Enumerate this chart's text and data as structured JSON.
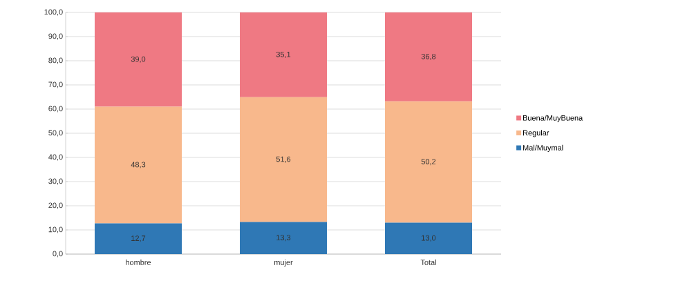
{
  "chart_data": {
    "type": "bar",
    "stacked": true,
    "categories": [
      "hombre",
      "mujer",
      "Total"
    ],
    "series": [
      {
        "name": "Mal/Muymal",
        "color": "#2f78b5",
        "values": [
          12.7,
          13.3,
          13.0
        ],
        "value_labels": [
          "12,7",
          "13,3",
          "13,0"
        ]
      },
      {
        "name": "Regular",
        "color": "#f8b88c",
        "values": [
          48.3,
          51.6,
          50.2
        ],
        "value_labels": [
          "48,3",
          "51,6",
          "50,2"
        ]
      },
      {
        "name": "Buena/MuyBuena",
        "color": "#ef7983",
        "values": [
          39.0,
          35.1,
          36.8
        ],
        "value_labels": [
          "39,0",
          "35,1",
          "36,8"
        ]
      }
    ],
    "ylim": [
      0,
      100
    ],
    "yticks": [
      {
        "value": 0,
        "label": "0,0"
      },
      {
        "value": 10,
        "label": "10,0"
      },
      {
        "value": 20,
        "label": "20,0"
      },
      {
        "value": 30,
        "label": "30,0"
      },
      {
        "value": 40,
        "label": "40,0"
      },
      {
        "value": 50,
        "label": "50,0"
      },
      {
        "value": 60,
        "label": "60,0"
      },
      {
        "value": 70,
        "label": "70,0"
      },
      {
        "value": 80,
        "label": "80,0"
      },
      {
        "value": 90,
        "label": "90,0"
      },
      {
        "value": 100,
        "label": "100,0"
      }
    ],
    "grid": "y",
    "legend": "right"
  }
}
